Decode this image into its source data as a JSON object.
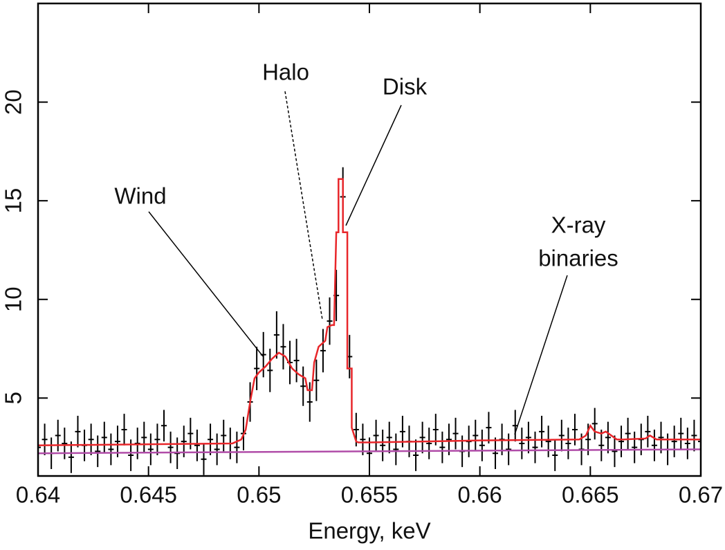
{
  "chart_data": {
    "type": "spectrum",
    "x_label": "Energy, keV",
    "xlim": [
      0.64,
      0.67
    ],
    "xticks": [
      0.64,
      0.645,
      0.65,
      0.655,
      0.66,
      0.665,
      0.67
    ],
    "ylim": [
      1.05,
      25
    ],
    "yticks": [
      5,
      10,
      15,
      20
    ],
    "annotations": [
      [
        "Wind"
      ],
      [
        "Halo"
      ],
      [
        "Disk"
      ],
      [
        "X-ray",
        "binaries"
      ]
    ],
    "series": [
      {
        "style": "points",
        "color": "#000000",
        "x": [
          0.64,
          0.6403,
          0.6406,
          0.6409,
          0.6412,
          0.6415,
          0.6418,
          0.6421,
          0.6424,
          0.6427,
          0.643,
          0.6433,
          0.6436,
          0.6439,
          0.6442,
          0.6445,
          0.6448,
          0.6451,
          0.6454,
          0.6457,
          0.646,
          0.6463,
          0.6466,
          0.6469,
          0.6472,
          0.6475,
          0.6478,
          0.6481,
          0.6484,
          0.6487,
          0.649,
          0.6493,
          0.6496,
          0.6499,
          0.6502,
          0.6505,
          0.6508,
          0.6511,
          0.6514,
          0.6517,
          0.652,
          0.6523,
          0.6526,
          0.6529,
          0.6532,
          0.6535,
          0.6538,
          0.6541,
          0.6544,
          0.6547,
          0.655,
          0.6553,
          0.6556,
          0.6559,
          0.6562,
          0.6565,
          0.6568,
          0.6571,
          0.6574,
          0.6577,
          0.658,
          0.6583,
          0.6586,
          0.6589,
          0.6592,
          0.6595,
          0.6598,
          0.6601,
          0.6604,
          0.6607,
          0.661,
          0.6613,
          0.6616,
          0.6619,
          0.6622,
          0.6625,
          0.6628,
          0.6631,
          0.6634,
          0.6637,
          0.664,
          0.6643,
          0.6646,
          0.6649,
          0.6652,
          0.6655,
          0.6658,
          0.6661,
          0.6664,
          0.6667,
          0.667,
          0.6673,
          0.6676,
          0.6679,
          0.6682,
          0.6685,
          0.6688,
          0.6691,
          0.6694,
          0.6697,
          0.67
        ],
        "values": [
          2.5,
          2.9,
          2.2,
          3.1,
          2.7,
          2.0,
          3.3,
          2.6,
          2.9,
          2.3,
          3.0,
          2.4,
          2.8,
          3.4,
          2.1,
          2.7,
          3.0,
          2.4,
          2.9,
          3.6,
          2.5,
          2.2,
          2.8,
          3.2,
          2.6,
          1.9,
          2.9,
          2.4,
          3.1,
          2.7,
          2.5,
          3.2,
          4.8,
          6.5,
          7.2,
          6.4,
          8.2,
          7.6,
          6.8,
          6.9,
          5.6,
          4.8,
          5.9,
          7.4,
          8.9,
          10.2,
          15.2,
          7.1,
          3.4,
          2.9,
          2.2,
          3.1,
          2.6,
          3.0,
          2.4,
          3.3,
          2.8,
          2.1,
          3.0,
          2.7,
          3.4,
          2.5,
          2.9,
          3.2,
          2.3,
          2.8,
          3.1,
          2.6,
          3.5,
          2.2,
          2.9,
          2.4,
          3.6,
          2.7,
          3.0,
          2.5,
          3.3,
          2.8,
          2.1,
          3.1,
          2.7,
          3.4,
          2.4,
          2.9,
          3.7,
          2.6,
          3.0,
          2.3,
          2.8,
          3.2,
          2.5,
          2.9,
          3.3,
          2.6,
          3.0,
          2.4,
          2.8,
          3.2,
          2.7,
          3.1,
          2.8
        ],
        "errors": [
          0.8,
          0.8,
          0.8,
          0.8,
          0.8,
          0.8,
          0.8,
          0.8,
          0.8,
          0.8,
          0.8,
          0.8,
          0.8,
          0.8,
          0.8,
          0.8,
          0.8,
          0.8,
          0.8,
          0.8,
          0.8,
          0.8,
          0.8,
          0.8,
          0.8,
          0.8,
          0.8,
          0.8,
          0.8,
          0.8,
          0.8,
          0.85,
          1.0,
          1.1,
          1.15,
          1.1,
          1.2,
          1.15,
          1.1,
          1.1,
          1.0,
          1.0,
          1.05,
          1.1,
          1.2,
          1.3,
          1.5,
          1.1,
          0.85,
          0.8,
          0.8,
          0.8,
          0.8,
          0.8,
          0.8,
          0.8,
          0.8,
          0.8,
          0.8,
          0.8,
          0.8,
          0.8,
          0.8,
          0.8,
          0.8,
          0.8,
          0.8,
          0.8,
          0.8,
          0.8,
          0.8,
          0.8,
          0.8,
          0.8,
          0.8,
          0.8,
          0.8,
          0.8,
          0.8,
          0.8,
          0.8,
          0.8,
          0.8,
          0.8,
          0.8,
          0.8,
          0.8,
          0.8,
          0.8,
          0.8,
          0.8,
          0.8,
          0.8,
          0.8,
          0.8,
          0.8,
          0.8,
          0.8,
          0.8,
          0.8,
          0.8
        ]
      },
      {
        "style": "line",
        "color": "#e8262a",
        "x": [
          0.64,
          0.6488,
          0.6492,
          0.6494,
          0.6496,
          0.6498,
          0.65,
          0.6503,
          0.6506,
          0.6509,
          0.6512,
          0.6515,
          0.6518,
          0.6521,
          0.6522,
          0.6524,
          0.6525,
          0.6527,
          0.6528,
          0.653,
          0.6531,
          0.6533,
          0.6534,
          0.6535,
          0.6536,
          0.6536,
          0.6538,
          0.6538,
          0.654,
          0.654,
          0.6542,
          0.6542,
          0.6544,
          0.6545,
          0.655,
          0.66,
          0.6645,
          0.6648,
          0.665,
          0.6652,
          0.6655,
          0.6657,
          0.6662,
          0.6665,
          0.6675,
          0.6677,
          0.668,
          0.67
        ],
        "values": [
          2.6,
          2.7,
          2.9,
          3.4,
          4.8,
          6.0,
          6.3,
          6.6,
          7.0,
          7.3,
          7.1,
          6.5,
          6.2,
          6.0,
          5.4,
          5.4,
          6.8,
          7.6,
          7.7,
          7.9,
          8.6,
          8.7,
          8.7,
          13.4,
          13.4,
          16.1,
          16.1,
          13.4,
          13.4,
          6.5,
          6.5,
          3.5,
          2.8,
          2.75,
          2.75,
          2.85,
          2.9,
          3.1,
          3.6,
          3.3,
          3.2,
          3.3,
          2.9,
          2.9,
          2.95,
          3.1,
          2.9,
          2.9
        ]
      },
      {
        "style": "line",
        "color": "#b04ca8",
        "x": [
          0.64,
          0.67
        ],
        "values": [
          2.2,
          2.4
        ]
      }
    ]
  }
}
